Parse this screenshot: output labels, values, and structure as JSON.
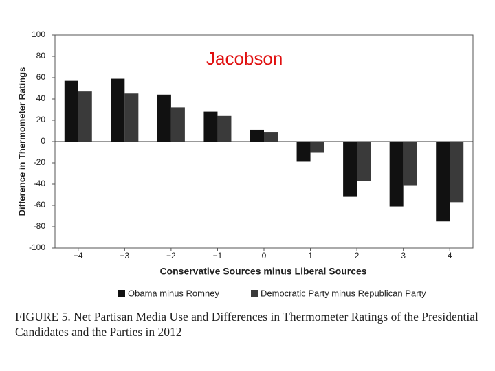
{
  "chart_data": {
    "type": "bar",
    "annotation": "Jacobson",
    "x_label": "Conservative Sources minus Liberal Sources",
    "y_label": "Difference in Thermometer Ratings",
    "caption": "FIGURE 5. Net Partisan Media Use and Differences in Thermometer Ratings of the Presidential Candidates and the Parties in 2012",
    "categories": [
      "−4",
      "−3",
      "−2",
      "−1",
      "0",
      "1",
      "2",
      "3",
      "4"
    ],
    "series": [
      {
        "name": "Obama minus Romney",
        "color": "#111111",
        "values": [
          57,
          59,
          44,
          28,
          11,
          -19,
          -52,
          -61,
          -75
        ]
      },
      {
        "name": "Democratic Party minus Republican Party",
        "color": "#3a3a3a",
        "values": [
          47,
          45,
          32,
          24,
          9,
          -10,
          -37,
          -41,
          -57
        ]
      }
    ],
    "ylim": [
      -100,
      100
    ],
    "yticks": [
      100,
      80,
      60,
      40,
      20,
      0,
      -20,
      -40,
      -60,
      -80,
      -100
    ]
  }
}
